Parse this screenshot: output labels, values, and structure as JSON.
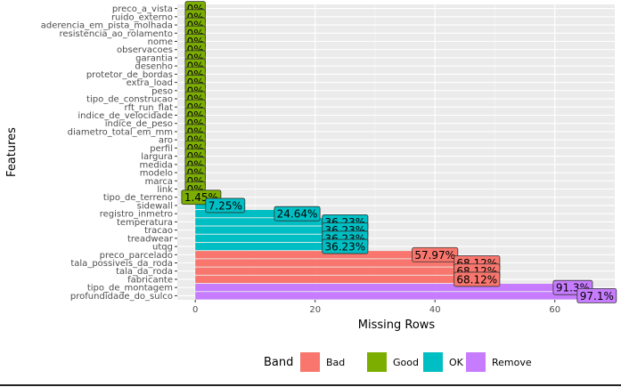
{
  "chart_data": {
    "type": "bar",
    "orientation": "horizontal",
    "xlabel": "Missing Rows",
    "ylabel": "Features",
    "xlim": [
      -3,
      70
    ],
    "xticks": [
      0,
      20,
      40,
      60
    ],
    "grid": true,
    "legend": {
      "title": "Band",
      "position": "bottom",
      "items": [
        {
          "name": "Bad",
          "color": "#F8766D"
        },
        {
          "name": "Good",
          "color": "#7CAE00"
        },
        {
          "name": "OK",
          "color": "#00BFC4"
        },
        {
          "name": "Remove",
          "color": "#C77CFF"
        }
      ]
    },
    "bars": [
      {
        "feature": "preco_a_vista",
        "value": 0,
        "label": "0%",
        "band": "Good"
      },
      {
        "feature": "ruido_externo",
        "value": 0,
        "label": "0%",
        "band": "Good"
      },
      {
        "feature": "aderencia_em_pista_molhada",
        "value": 0,
        "label": "0%",
        "band": "Good"
      },
      {
        "feature": "resistencia_ao_rolamento",
        "value": 0,
        "label": "0%",
        "band": "Good"
      },
      {
        "feature": "nome",
        "value": 0,
        "label": "0%",
        "band": "Good"
      },
      {
        "feature": "observacoes",
        "value": 0,
        "label": "0%",
        "band": "Good"
      },
      {
        "feature": "garantia",
        "value": 0,
        "label": "0%",
        "band": "Good"
      },
      {
        "feature": "desenho",
        "value": 0,
        "label": "0%",
        "band": "Good"
      },
      {
        "feature": "protetor_de_bordas",
        "value": 0,
        "label": "0%",
        "band": "Good"
      },
      {
        "feature": "extra_load",
        "value": 0,
        "label": "0%",
        "band": "Good"
      },
      {
        "feature": "peso",
        "value": 0,
        "label": "0%",
        "band": "Good"
      },
      {
        "feature": "tipo_de_construcao",
        "value": 0,
        "label": "0%",
        "band": "Good"
      },
      {
        "feature": "rft_run_flat",
        "value": 0,
        "label": "0%",
        "band": "Good"
      },
      {
        "feature": "indice_de_velocidade",
        "value": 0,
        "label": "0%",
        "band": "Good"
      },
      {
        "feature": "indice_de_peso",
        "value": 0,
        "label": "0%",
        "band": "Good"
      },
      {
        "feature": "diametro_total_em_mm",
        "value": 0,
        "label": "0%",
        "band": "Good"
      },
      {
        "feature": "aro",
        "value": 0,
        "label": "0%",
        "band": "Good"
      },
      {
        "feature": "perfil",
        "value": 0,
        "label": "0%",
        "band": "Good"
      },
      {
        "feature": "largura",
        "value": 0,
        "label": "0%",
        "band": "Good"
      },
      {
        "feature": "medida",
        "value": 0,
        "label": "0%",
        "band": "Good"
      },
      {
        "feature": "modelo",
        "value": 0,
        "label": "0%",
        "band": "Good"
      },
      {
        "feature": "marca",
        "value": 0,
        "label": "0%",
        "band": "Good"
      },
      {
        "feature": "link",
        "value": 0,
        "label": "0%",
        "band": "Good"
      },
      {
        "feature": "tipo_de_terreno",
        "value": 1,
        "label": "1.45%",
        "band": "Good"
      },
      {
        "feature": "sidewall",
        "value": 5,
        "label": "7.25%",
        "band": "OK"
      },
      {
        "feature": "registro_inmetro",
        "value": 17,
        "label": "24.64%",
        "band": "OK"
      },
      {
        "feature": "temperatura",
        "value": 25,
        "label": "36.23%",
        "band": "OK"
      },
      {
        "feature": "tracao",
        "value": 25,
        "label": "36.23%",
        "band": "OK"
      },
      {
        "feature": "treadwear",
        "value": 25,
        "label": "36.23%",
        "band": "OK"
      },
      {
        "feature": "utqg",
        "value": 25,
        "label": "36.23%",
        "band": "OK"
      },
      {
        "feature": "preco_parcelado",
        "value": 40,
        "label": "57.97%",
        "band": "Bad"
      },
      {
        "feature": "tala_possiveis_da_roda",
        "value": 47,
        "label": "68.12%",
        "band": "Bad"
      },
      {
        "feature": "tala_da_roda",
        "value": 47,
        "label": "68.12%",
        "band": "Bad"
      },
      {
        "feature": "fabricante",
        "value": 47,
        "label": "68.12%",
        "band": "Bad"
      },
      {
        "feature": "tipo_de_montagem",
        "value": 63,
        "label": "91.3%",
        "band": "Remove"
      },
      {
        "feature": "profundidade_do_sulco",
        "value": 67,
        "label": "97.1%",
        "band": "Remove"
      }
    ]
  }
}
